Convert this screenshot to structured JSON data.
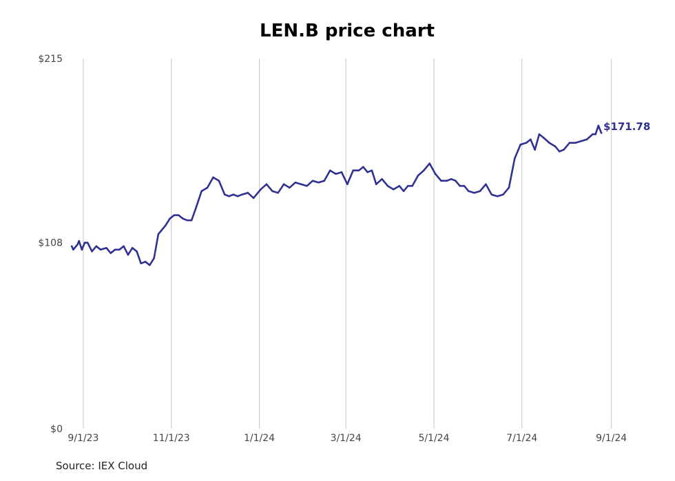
{
  "chart_data": {
    "type": "line",
    "title": "LEN.B price chart",
    "source": "Source: IEX Cloud",
    "ylim": [
      0,
      215
    ],
    "y_ticks": [
      {
        "value": 0,
        "label": "$0"
      },
      {
        "value": 108,
        "label": "$108"
      },
      {
        "value": 215,
        "label": "$215"
      }
    ],
    "x_range": [
      "2023-08-22",
      "2024-09-26"
    ],
    "x_ticks": [
      {
        "date": "2023-09-01",
        "label": "9/1/23"
      },
      {
        "date": "2023-11-01",
        "label": "11/1/23"
      },
      {
        "date": "2024-01-01",
        "label": "1/1/24"
      },
      {
        "date": "2024-03-01",
        "label": "3/1/24"
      },
      {
        "date": "2024-05-01",
        "label": "5/1/24"
      },
      {
        "date": "2024-07-01",
        "label": "7/1/24"
      },
      {
        "date": "2024-09-01",
        "label": "9/1/24"
      }
    ],
    "grid": "vertical",
    "line_color": "#2e3192",
    "last_value_label": "$171.78",
    "series": [
      {
        "x": [
          "2023-08-24",
          "2023-08-25",
          "2023-08-28",
          "2023-08-29",
          "2023-08-31",
          "2023-09-02",
          "2023-09-04",
          "2023-09-07",
          "2023-09-10",
          "2023-09-13",
          "2023-09-17",
          "2023-09-20",
          "2023-09-23",
          "2023-09-26",
          "2023-09-29",
          "2023-10-02",
          "2023-10-05",
          "2023-10-08",
          "2023-10-11",
          "2023-10-14",
          "2023-10-17",
          "2023-10-20",
          "2023-10-23",
          "2023-10-25",
          "2023-10-28",
          "2023-10-31",
          "2023-11-03",
          "2023-11-06",
          "2023-11-09",
          "2023-11-12",
          "2023-11-15",
          "2023-11-18",
          "2023-11-22",
          "2023-11-26",
          "2023-11-30",
          "2023-12-04",
          "2023-12-08",
          "2023-12-11",
          "2023-12-14",
          "2023-12-17",
          "2023-12-20",
          "2023-12-24",
          "2023-12-28",
          "2024-01-02",
          "2024-01-06",
          "2024-01-10",
          "2024-01-14",
          "2024-01-18",
          "2024-01-22",
          "2024-01-26",
          "2024-01-30",
          "2024-02-03",
          "2024-02-07",
          "2024-02-11",
          "2024-02-15",
          "2024-02-19",
          "2024-02-23",
          "2024-02-27",
          "2024-03-02",
          "2024-03-06",
          "2024-03-10",
          "2024-03-13",
          "2024-03-16",
          "2024-03-19",
          "2024-03-22",
          "2024-03-26",
          "2024-03-30",
          "2024-04-03",
          "2024-04-07",
          "2024-04-10",
          "2024-04-13",
          "2024-04-16",
          "2024-04-20",
          "2024-04-24",
          "2024-04-28",
          "2024-05-02",
          "2024-05-06",
          "2024-05-10",
          "2024-05-13",
          "2024-05-16",
          "2024-05-19",
          "2024-05-22",
          "2024-05-25",
          "2024-05-29",
          "2024-06-02",
          "2024-06-06",
          "2024-06-10",
          "2024-06-14",
          "2024-06-18",
          "2024-06-22",
          "2024-06-26",
          "2024-06-30",
          "2024-07-04",
          "2024-07-07",
          "2024-07-10",
          "2024-07-13",
          "2024-07-16",
          "2024-07-20",
          "2024-07-24",
          "2024-07-27",
          "2024-07-30",
          "2024-08-03",
          "2024-08-07",
          "2024-08-11",
          "2024-08-15",
          "2024-08-19",
          "2024-08-21",
          "2024-08-23",
          "2024-08-25"
        ],
        "values": [
          106,
          104,
          107,
          109,
          104,
          108,
          108,
          103,
          106,
          104,
          105,
          102,
          104,
          104,
          106,
          101,
          105,
          103,
          96,
          97,
          95,
          99,
          113,
          115,
          118,
          122,
          124,
          124,
          122,
          121,
          121,
          128,
          138,
          140,
          146,
          144,
          136,
          135,
          136,
          135,
          136,
          137,
          134,
          139,
          142,
          138,
          137,
          142,
          140,
          143,
          142,
          141,
          144,
          143,
          144,
          150,
          148,
          149,
          142,
          150,
          150,
          152,
          149,
          150,
          142,
          145,
          141,
          139,
          141,
          138,
          141,
          141,
          147,
          150,
          154,
          148,
          144,
          144,
          145,
          144,
          141,
          141,
          138,
          137,
          138,
          142,
          136,
          135,
          136,
          140,
          157,
          165,
          166,
          168,
          162,
          171,
          169,
          166,
          164,
          161,
          162,
          166,
          166,
          167,
          168,
          171,
          171,
          176,
          171.78
        ]
      }
    ]
  }
}
